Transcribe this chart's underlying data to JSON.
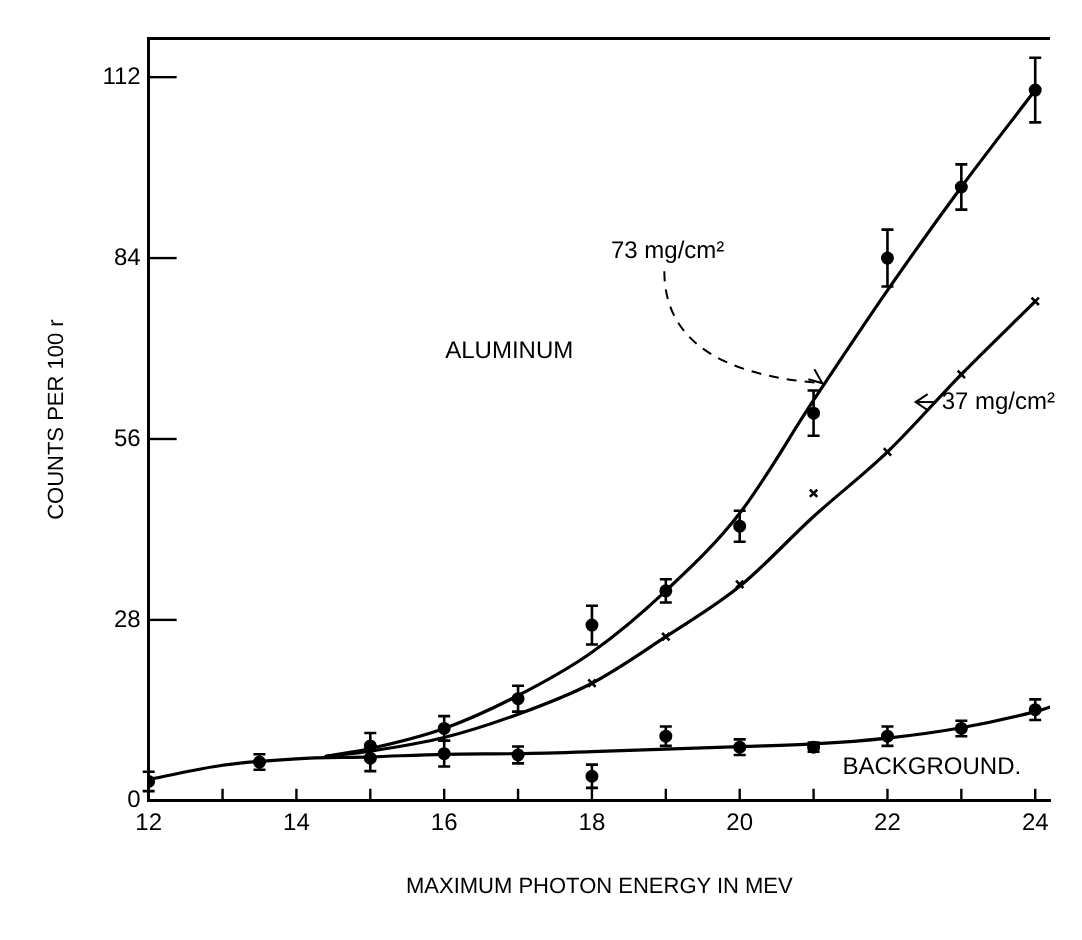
{
  "chart_data": {
    "type": "scatter",
    "xlabel": "MAXIMUM PHOTON ENERGY IN MEV",
    "ylabel": "COUNTS PER 100 r",
    "xlim": [
      12,
      24.2
    ],
    "ylim": [
      0,
      118
    ],
    "xticks": [
      12,
      {
        "value": 13,
        "label": null
      },
      14,
      {
        "value": 15,
        "label": null
      },
      16,
      {
        "value": 17,
        "label": null
      },
      18,
      {
        "value": 19,
        "label": null
      },
      20,
      {
        "value": 21,
        "label": null
      },
      22,
      {
        "value": 23,
        "label": null
      },
      24
    ],
    "yticks": [
      0,
      28,
      56,
      84,
      112
    ],
    "grid": false,
    "legend": false,
    "series": [
      {
        "marker": "circle",
        "color": "#000000",
        "x": [
          15,
          16,
          17,
          18,
          19,
          20,
          21,
          22,
          23,
          24
        ],
        "values": [
          8.5,
          11.2,
          15.8,
          27.2,
          32.5,
          42.5,
          60,
          84,
          95,
          110
        ],
        "errors": [
          2,
          1.9,
          2,
          3,
          1.8,
          2.4,
          3.5,
          4.4,
          3.5,
          5
        ]
      },
      {
        "type": "line",
        "marker": "none",
        "color": "#000000",
        "x": [
          14.4,
          15,
          16,
          17,
          18,
          19,
          20,
          21,
          22,
          23,
          24
        ],
        "values": [
          6.9,
          8.1,
          11.2,
          16.3,
          23,
          32.5,
          44.5,
          62,
          79,
          95,
          110
        ]
      },
      {
        "marker": "cross",
        "color": "#000000",
        "x": [
          18,
          19,
          20,
          21,
          22,
          23,
          24
        ],
        "values": [
          18.2,
          25.4,
          33.5,
          47.6,
          54,
          66,
          77.3
        ]
      },
      {
        "type": "line",
        "marker": "none",
        "color": "#000000",
        "x": [
          14.4,
          15,
          16,
          17,
          18,
          19,
          20,
          21,
          22,
          23,
          24
        ],
        "values": [
          6.9,
          7.7,
          9.8,
          13.4,
          18.2,
          25.4,
          33.2,
          44,
          54,
          66,
          77.3
        ]
      },
      {
        "marker": "circle",
        "color": "#000000",
        "x": [
          12,
          13.5,
          15,
          16,
          17,
          18,
          19,
          20,
          21,
          22,
          23,
          24
        ],
        "values": [
          3,
          6,
          6.6,
          7.3,
          7.1,
          3.8,
          10,
          8.3,
          8.3,
          10,
          11.2,
          14.1
        ],
        "errors": [
          1.5,
          1.2,
          2,
          2,
          1.3,
          1.8,
          1.5,
          1.2,
          0.7,
          1.5,
          1.2,
          1.6
        ]
      },
      {
        "type": "line",
        "marker": "none",
        "color": "#000000",
        "x": [
          12,
          13,
          14,
          15,
          16,
          17,
          18,
          19,
          20,
          21,
          22,
          23,
          24,
          24.2
        ],
        "values": [
          3.3,
          5.5,
          6.5,
          6.8,
          7.2,
          7.3,
          7.6,
          8,
          8.4,
          8.8,
          9.7,
          11.3,
          13.8,
          14.5
        ]
      }
    ],
    "annotations": [
      "ALUMINUM",
      {
        "text": "73 mg/cm²",
        "x": 21.2,
        "y": 64
      },
      {
        "text": "37 mg/cm²",
        "x": 22.3,
        "y": 58
      },
      {
        "text": "BACKGROUND.",
        "x": 22.6,
        "y": 10.5
      }
    ]
  }
}
